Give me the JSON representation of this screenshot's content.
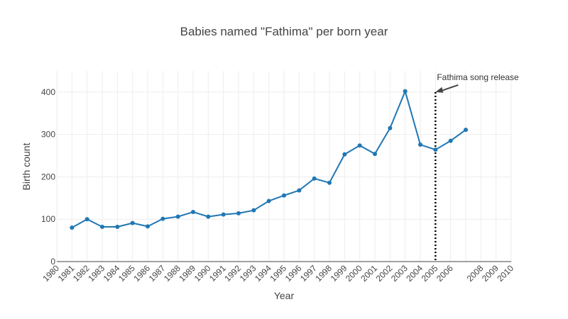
{
  "chart_data": {
    "type": "line",
    "title": "Babies named \"Fathima\" per born year",
    "xlabel": "Year",
    "ylabel": "Birth count",
    "x_ticks": [
      "1980",
      "1981",
      "1982",
      "1983",
      "1984",
      "1985",
      "1986",
      "1987",
      "1988",
      "1989",
      "1990",
      "1991",
      "1992",
      "1993",
      "1994",
      "1995",
      "1996",
      "1997",
      "1998",
      "1999",
      "2000",
      "2001",
      "2002",
      "2003",
      "2004",
      "2005",
      "2006",
      "2008",
      "2009",
      "2010"
    ],
    "y_ticks": [
      "0",
      "100",
      "200",
      "300",
      "400"
    ],
    "xlim": [
      1980,
      2010
    ],
    "ylim": [
      0,
      450
    ],
    "grid": true,
    "series": [
      {
        "color": "#1f77b4",
        "x": [
          1981,
          1982,
          1983,
          1984,
          1985,
          1986,
          1987,
          1988,
          1989,
          1990,
          1991,
          1992,
          1993,
          1994,
          1995,
          1996,
          1997,
          1998,
          1999,
          2000,
          2001,
          2002,
          2003,
          2004,
          2005,
          2006,
          2007
        ],
        "y": [
          80,
          100,
          82,
          82,
          91,
          83,
          101,
          106,
          117,
          106,
          111,
          114,
          121,
          143,
          156,
          168,
          196,
          186,
          253,
          274,
          254,
          315,
          402,
          276,
          264,
          285,
          311
        ]
      }
    ],
    "annotations": [
      {
        "text": "Fathima song release",
        "x": 2005,
        "y": 400,
        "vline_x": 2005
      }
    ]
  }
}
